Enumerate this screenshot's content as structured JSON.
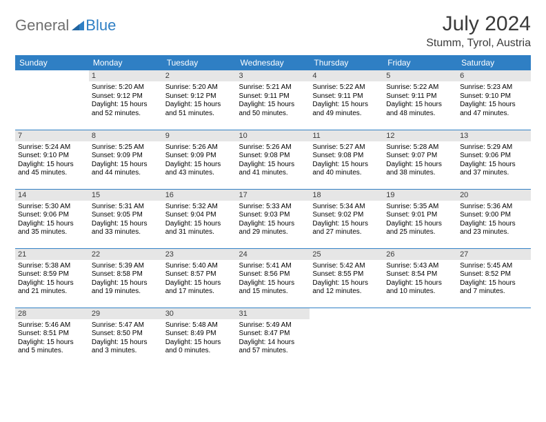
{
  "brand": {
    "part1": "General",
    "part2": "Blue"
  },
  "title": "July 2024",
  "location": "Stumm, Tyrol, Austria",
  "colors": {
    "header_bg": "#2f7fc4",
    "header_text": "#ffffff",
    "daynum_bg": "#e6e6e6",
    "border": "#2f7fc4",
    "title_color": "#3a3a3a",
    "body_text": "#000000"
  },
  "day_headers": [
    "Sunday",
    "Monday",
    "Tuesday",
    "Wednesday",
    "Thursday",
    "Friday",
    "Saturday"
  ],
  "weeks": [
    [
      {
        "day": "",
        "sunrise": "",
        "sunset": "",
        "daylight": "",
        "empty": true
      },
      {
        "day": "1",
        "sunrise": "Sunrise: 5:20 AM",
        "sunset": "Sunset: 9:12 PM",
        "daylight": "Daylight: 15 hours and 52 minutes."
      },
      {
        "day": "2",
        "sunrise": "Sunrise: 5:20 AM",
        "sunset": "Sunset: 9:12 PM",
        "daylight": "Daylight: 15 hours and 51 minutes."
      },
      {
        "day": "3",
        "sunrise": "Sunrise: 5:21 AM",
        "sunset": "Sunset: 9:11 PM",
        "daylight": "Daylight: 15 hours and 50 minutes."
      },
      {
        "day": "4",
        "sunrise": "Sunrise: 5:22 AM",
        "sunset": "Sunset: 9:11 PM",
        "daylight": "Daylight: 15 hours and 49 minutes."
      },
      {
        "day": "5",
        "sunrise": "Sunrise: 5:22 AM",
        "sunset": "Sunset: 9:11 PM",
        "daylight": "Daylight: 15 hours and 48 minutes."
      },
      {
        "day": "6",
        "sunrise": "Sunrise: 5:23 AM",
        "sunset": "Sunset: 9:10 PM",
        "daylight": "Daylight: 15 hours and 47 minutes."
      }
    ],
    [
      {
        "day": "7",
        "sunrise": "Sunrise: 5:24 AM",
        "sunset": "Sunset: 9:10 PM",
        "daylight": "Daylight: 15 hours and 45 minutes."
      },
      {
        "day": "8",
        "sunrise": "Sunrise: 5:25 AM",
        "sunset": "Sunset: 9:09 PM",
        "daylight": "Daylight: 15 hours and 44 minutes."
      },
      {
        "day": "9",
        "sunrise": "Sunrise: 5:26 AM",
        "sunset": "Sunset: 9:09 PM",
        "daylight": "Daylight: 15 hours and 43 minutes."
      },
      {
        "day": "10",
        "sunrise": "Sunrise: 5:26 AM",
        "sunset": "Sunset: 9:08 PM",
        "daylight": "Daylight: 15 hours and 41 minutes."
      },
      {
        "day": "11",
        "sunrise": "Sunrise: 5:27 AM",
        "sunset": "Sunset: 9:08 PM",
        "daylight": "Daylight: 15 hours and 40 minutes."
      },
      {
        "day": "12",
        "sunrise": "Sunrise: 5:28 AM",
        "sunset": "Sunset: 9:07 PM",
        "daylight": "Daylight: 15 hours and 38 minutes."
      },
      {
        "day": "13",
        "sunrise": "Sunrise: 5:29 AM",
        "sunset": "Sunset: 9:06 PM",
        "daylight": "Daylight: 15 hours and 37 minutes."
      }
    ],
    [
      {
        "day": "14",
        "sunrise": "Sunrise: 5:30 AM",
        "sunset": "Sunset: 9:06 PM",
        "daylight": "Daylight: 15 hours and 35 minutes."
      },
      {
        "day": "15",
        "sunrise": "Sunrise: 5:31 AM",
        "sunset": "Sunset: 9:05 PM",
        "daylight": "Daylight: 15 hours and 33 minutes."
      },
      {
        "day": "16",
        "sunrise": "Sunrise: 5:32 AM",
        "sunset": "Sunset: 9:04 PM",
        "daylight": "Daylight: 15 hours and 31 minutes."
      },
      {
        "day": "17",
        "sunrise": "Sunrise: 5:33 AM",
        "sunset": "Sunset: 9:03 PM",
        "daylight": "Daylight: 15 hours and 29 minutes."
      },
      {
        "day": "18",
        "sunrise": "Sunrise: 5:34 AM",
        "sunset": "Sunset: 9:02 PM",
        "daylight": "Daylight: 15 hours and 27 minutes."
      },
      {
        "day": "19",
        "sunrise": "Sunrise: 5:35 AM",
        "sunset": "Sunset: 9:01 PM",
        "daylight": "Daylight: 15 hours and 25 minutes."
      },
      {
        "day": "20",
        "sunrise": "Sunrise: 5:36 AM",
        "sunset": "Sunset: 9:00 PM",
        "daylight": "Daylight: 15 hours and 23 minutes."
      }
    ],
    [
      {
        "day": "21",
        "sunrise": "Sunrise: 5:38 AM",
        "sunset": "Sunset: 8:59 PM",
        "daylight": "Daylight: 15 hours and 21 minutes."
      },
      {
        "day": "22",
        "sunrise": "Sunrise: 5:39 AM",
        "sunset": "Sunset: 8:58 PM",
        "daylight": "Daylight: 15 hours and 19 minutes."
      },
      {
        "day": "23",
        "sunrise": "Sunrise: 5:40 AM",
        "sunset": "Sunset: 8:57 PM",
        "daylight": "Daylight: 15 hours and 17 minutes."
      },
      {
        "day": "24",
        "sunrise": "Sunrise: 5:41 AM",
        "sunset": "Sunset: 8:56 PM",
        "daylight": "Daylight: 15 hours and 15 minutes."
      },
      {
        "day": "25",
        "sunrise": "Sunrise: 5:42 AM",
        "sunset": "Sunset: 8:55 PM",
        "daylight": "Daylight: 15 hours and 12 minutes."
      },
      {
        "day": "26",
        "sunrise": "Sunrise: 5:43 AM",
        "sunset": "Sunset: 8:54 PM",
        "daylight": "Daylight: 15 hours and 10 minutes."
      },
      {
        "day": "27",
        "sunrise": "Sunrise: 5:45 AM",
        "sunset": "Sunset: 8:52 PM",
        "daylight": "Daylight: 15 hours and 7 minutes."
      }
    ],
    [
      {
        "day": "28",
        "sunrise": "Sunrise: 5:46 AM",
        "sunset": "Sunset: 8:51 PM",
        "daylight": "Daylight: 15 hours and 5 minutes."
      },
      {
        "day": "29",
        "sunrise": "Sunrise: 5:47 AM",
        "sunset": "Sunset: 8:50 PM",
        "daylight": "Daylight: 15 hours and 3 minutes."
      },
      {
        "day": "30",
        "sunrise": "Sunrise: 5:48 AM",
        "sunset": "Sunset: 8:49 PM",
        "daylight": "Daylight: 15 hours and 0 minutes."
      },
      {
        "day": "31",
        "sunrise": "Sunrise: 5:49 AM",
        "sunset": "Sunset: 8:47 PM",
        "daylight": "Daylight: 14 hours and 57 minutes."
      },
      {
        "day": "",
        "sunrise": "",
        "sunset": "",
        "daylight": "",
        "empty": true
      },
      {
        "day": "",
        "sunrise": "",
        "sunset": "",
        "daylight": "",
        "empty": true
      },
      {
        "day": "",
        "sunrise": "",
        "sunset": "",
        "daylight": "",
        "empty": true
      }
    ]
  ]
}
